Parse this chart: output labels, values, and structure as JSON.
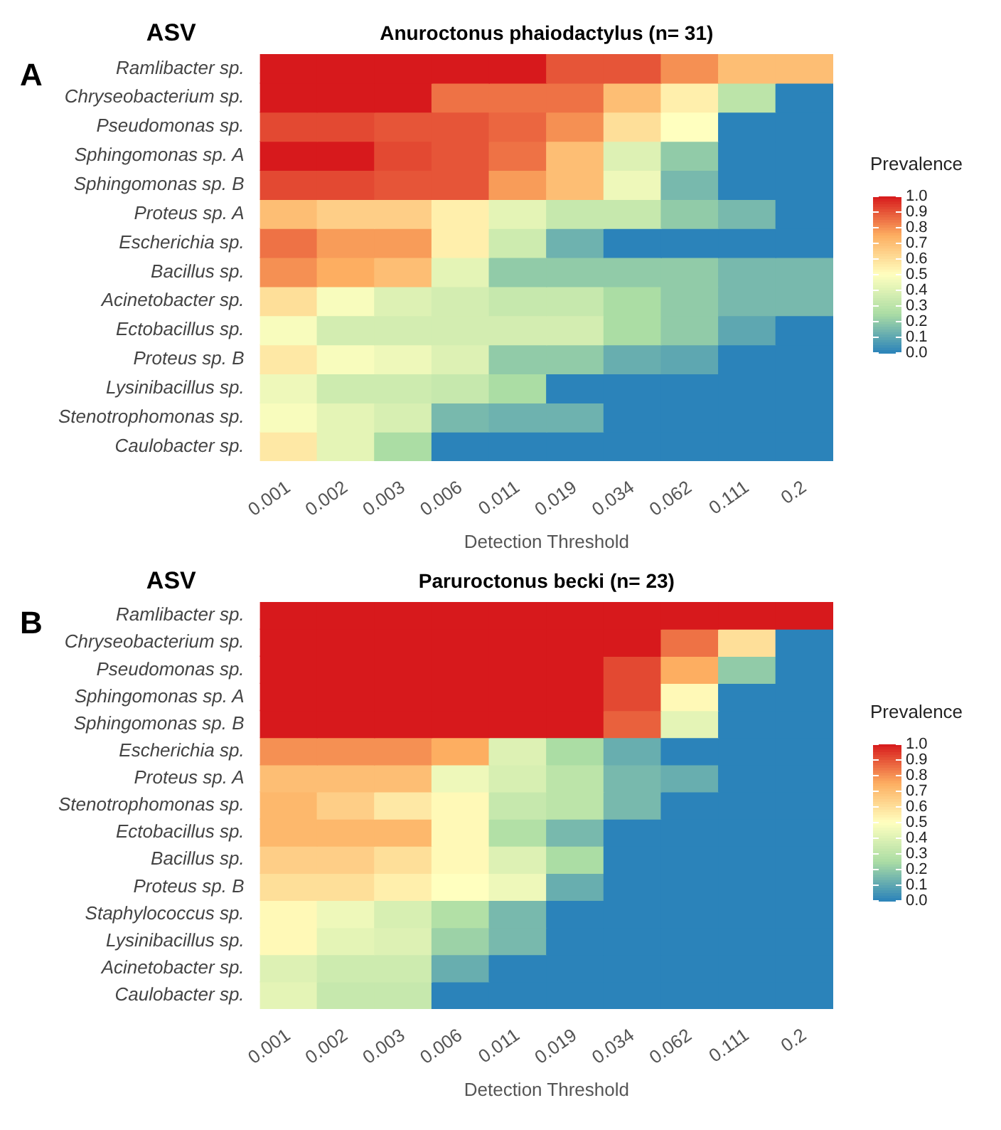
{
  "chart_data": [
    {
      "type": "heatmap",
      "title": "Anuroctonus phaiodactylus (n= 31)",
      "xlabel": "Detection Threshold",
      "ylabel": "ASV",
      "clabel": "Prevalence",
      "annotations": [
        "A"
      ],
      "categories": [
        "0.001",
        "0.002",
        "0.003",
        "0.006",
        "0.011",
        "0.019",
        "0.034",
        "0.062",
        "0.111",
        "0.2"
      ],
      "y_categories": [
        "Ramlibacter sp.",
        "Chryseobacterium sp.",
        "Pseudomonas sp.",
        "Sphingomonas sp. A",
        "Sphingomonas sp. B",
        "Proteus sp. A",
        "Escherichia sp.",
        "Bacillus sp.",
        "Acinetobacter sp.",
        "Ectobacillus sp.",
        "Proteus sp. B",
        "Lysinibacillus sp.",
        "Stenotrophomonas sp.",
        "Caulobacter sp."
      ],
      "cells": [
        [
          1,
          1,
          1,
          1,
          1,
          0.9,
          0.9,
          0.8,
          0.7,
          0.7
        ],
        [
          1,
          1,
          1,
          0.85,
          0.85,
          0.85,
          0.7,
          0.55,
          0.3,
          0
        ],
        [
          0.92,
          0.92,
          0.9,
          0.9,
          0.87,
          0.8,
          0.6,
          0.5,
          0,
          0
        ],
        [
          1,
          1,
          0.92,
          0.9,
          0.85,
          0.7,
          0.4,
          0.2,
          0,
          0
        ],
        [
          0.92,
          0.92,
          0.9,
          0.9,
          0.78,
          0.7,
          0.45,
          0.15,
          0,
          0
        ],
        [
          0.7,
          0.65,
          0.65,
          0.55,
          0.42,
          0.33,
          0.33,
          0.2,
          0.15,
          0
        ],
        [
          0.85,
          0.78,
          0.78,
          0.55,
          0.35,
          0.13,
          0,
          0,
          0,
          0
        ],
        [
          0.8,
          0.75,
          0.7,
          0.42,
          0.2,
          0.2,
          0.2,
          0.2,
          0.15,
          0.15
        ],
        [
          0.6,
          0.48,
          0.4,
          0.37,
          0.33,
          0.33,
          0.25,
          0.2,
          0.15,
          0.15
        ],
        [
          0.48,
          0.37,
          0.37,
          0.37,
          0.37,
          0.37,
          0.25,
          0.2,
          0.1,
          0
        ],
        [
          0.57,
          0.48,
          0.45,
          0.4,
          0.2,
          0.2,
          0.12,
          0.1,
          0,
          0
        ],
        [
          0.45,
          0.35,
          0.35,
          0.33,
          0.25,
          0,
          0,
          0,
          0,
          0
        ],
        [
          0.48,
          0.42,
          0.38,
          0.15,
          0.13,
          0.13,
          0,
          0,
          0,
          0
        ],
        [
          0.57,
          0.42,
          0.25,
          0,
          0,
          0,
          0,
          0,
          0,
          0
        ]
      ],
      "clim": [
        0,
        1
      ],
      "cticks": [
        {
          "value": 0,
          "label": "0.0"
        },
        {
          "value": 0.1,
          "label": "0.1"
        },
        {
          "value": 0.2,
          "label": "0.2"
        },
        {
          "value": 0.3,
          "label": "0.3"
        },
        {
          "value": 0.4,
          "label": "0.4"
        },
        {
          "value": 0.5,
          "label": "0.5"
        },
        {
          "value": 0.6,
          "label": "0.6"
        },
        {
          "value": 0.7,
          "label": "0.7"
        },
        {
          "value": 0.8,
          "label": "0.8"
        },
        {
          "value": 0.9,
          "label": "0.9"
        },
        {
          "value": 1,
          "label": "1.0"
        }
      ]
    },
    {
      "type": "heatmap",
      "title": "Paruroctonus becki (n= 23)",
      "xlabel": "Detection Threshold",
      "ylabel": "ASV",
      "clabel": "Prevalence",
      "annotations": [
        "B"
      ],
      "categories": [
        "0.001",
        "0.002",
        "0.003",
        "0.006",
        "0.011",
        "0.019",
        "0.034",
        "0.062",
        "0.111",
        "0.2"
      ],
      "y_categories": [
        "Ramlibacter sp.",
        "Chryseobacterium sp.",
        "Pseudomonas sp.",
        "Sphingomonas sp. A",
        "Sphingomonas sp. B",
        "Escherichia sp.",
        "Proteus sp. A",
        "Stenotrophomonas sp.",
        "Ectobacillus sp.",
        "Bacillus sp.",
        "Proteus sp. B",
        "Staphylococcus sp.",
        "Lysinibacillus sp.",
        "Acinetobacter sp.",
        "Caulobacter sp."
      ],
      "cells": [
        [
          1,
          1,
          1,
          1,
          1,
          1,
          1,
          1,
          1,
          1
        ],
        [
          1,
          1,
          1,
          1,
          1,
          1,
          1,
          0.85,
          0.6,
          0
        ],
        [
          1,
          1,
          1,
          1,
          1,
          1,
          0.92,
          0.75,
          0.2,
          0
        ],
        [
          1,
          1,
          1,
          1,
          1,
          1,
          0.92,
          0.52,
          0,
          0
        ],
        [
          1,
          1,
          1,
          1,
          1,
          1,
          0.88,
          0.42,
          0,
          0
        ],
        [
          0.8,
          0.8,
          0.8,
          0.75,
          0.4,
          0.25,
          0.12,
          0,
          0,
          0
        ],
        [
          0.7,
          0.7,
          0.7,
          0.45,
          0.38,
          0.3,
          0.15,
          0.12,
          0,
          0
        ],
        [
          0.72,
          0.65,
          0.57,
          0.52,
          0.33,
          0.3,
          0.15,
          0,
          0,
          0
        ],
        [
          0.72,
          0.72,
          0.72,
          0.52,
          0.27,
          0.15,
          0,
          0,
          0,
          0
        ],
        [
          0.65,
          0.65,
          0.6,
          0.52,
          0.4,
          0.25,
          0,
          0,
          0,
          0
        ],
        [
          0.6,
          0.6,
          0.55,
          0.5,
          0.45,
          0.12,
          0,
          0,
          0,
          0
        ],
        [
          0.52,
          0.45,
          0.38,
          0.27,
          0.15,
          0,
          0,
          0,
          0,
          0
        ],
        [
          0.52,
          0.42,
          0.4,
          0.22,
          0.15,
          0,
          0,
          0,
          0,
          0
        ],
        [
          0.4,
          0.35,
          0.35,
          0.12,
          0,
          0,
          0,
          0,
          0,
          0
        ],
        [
          0.42,
          0.33,
          0.33,
          0,
          0,
          0,
          0,
          0,
          0,
          0
        ]
      ],
      "clim": [
        0,
        1
      ],
      "cticks": [
        {
          "value": 0,
          "label": "0.0"
        },
        {
          "value": 0.1,
          "label": "0.1"
        },
        {
          "value": 0.2,
          "label": "0.2"
        },
        {
          "value": 0.3,
          "label": "0.3"
        },
        {
          "value": 0.4,
          "label": "0.4"
        },
        {
          "value": 0.5,
          "label": "0.5"
        },
        {
          "value": 0.6,
          "label": "0.6"
        },
        {
          "value": 0.7,
          "label": "0.7"
        },
        {
          "value": 0.8,
          "label": "0.8"
        },
        {
          "value": 0.9,
          "label": "0.9"
        },
        {
          "value": 1,
          "label": "1.0"
        }
      ]
    }
  ]
}
